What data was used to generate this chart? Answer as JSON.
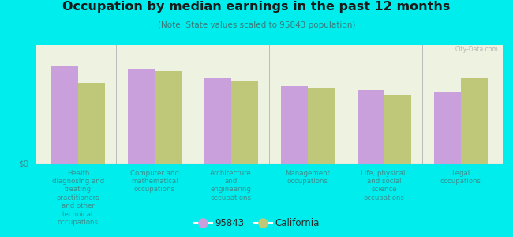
{
  "title": "Occupation by median earnings in the past 12 months",
  "subtitle": "(Note: State values scaled to 95843 population)",
  "background_color": "#00eded",
  "plot_bg_color": "#eef2e0",
  "categories": [
    "Health\ndiagnosing and\ntreating\npractitioners\nand other\ntechnical\noccupations",
    "Computer and\nmathematical\noccupations",
    "Architecture\nand\nengineering\noccupations",
    "Management\noccupations",
    "Life, physical,\nand social\nscience\noccupations",
    "Legal\noccupations"
  ],
  "values_95843": [
    0.82,
    0.8,
    0.72,
    0.65,
    0.62,
    0.6
  ],
  "values_california": [
    0.68,
    0.78,
    0.7,
    0.64,
    0.58,
    0.72
  ],
  "color_95843": "#c9a0dc",
  "color_california": "#bfc878",
  "ylabel": "$0",
  "legend_95843": "95843",
  "legend_california": "California",
  "bar_width": 0.35,
  "watermark": "City-Data.com",
  "title_color": "#1a1a1a",
  "subtitle_color": "#3a7a7a",
  "tick_color": "#3a9090",
  "divider_color": "#bbbbbb"
}
